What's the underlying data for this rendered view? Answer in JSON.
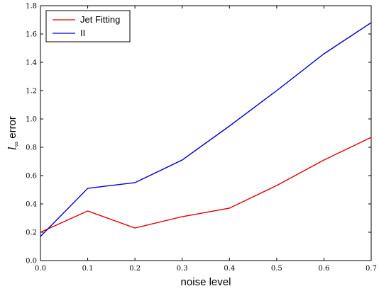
{
  "chart_data": {
    "type": "line",
    "x": [
      0.0,
      0.1,
      0.2,
      0.3,
      0.4,
      0.5,
      0.6,
      0.7
    ],
    "series": [
      {
        "name": "Jet Fitting",
        "color": "#e00000",
        "values": [
          0.2,
          0.35,
          0.23,
          0.31,
          0.37,
          0.53,
          0.71,
          0.87
        ]
      },
      {
        "name": "II",
        "color": "#0000d0",
        "values": [
          0.17,
          0.51,
          0.55,
          0.71,
          0.95,
          1.2,
          1.46,
          1.68
        ]
      }
    ],
    "xlabel": "noise level",
    "ylabel_main": "l",
    "ylabel_sub": "∞",
    "ylabel_rest": " error",
    "xlim": [
      0.0,
      0.7
    ],
    "ylim": [
      0.0,
      1.8
    ],
    "xticks": [
      "0.0",
      "0.1",
      "0.2",
      "0.3",
      "0.4",
      "0.5",
      "0.6",
      "0.7"
    ],
    "yticks": [
      "0.0",
      "0.2",
      "0.4",
      "0.6",
      "0.8",
      "1.0",
      "1.2",
      "1.4",
      "1.6",
      "1.8"
    ],
    "legend_position": "top-left",
    "grid": false
  }
}
